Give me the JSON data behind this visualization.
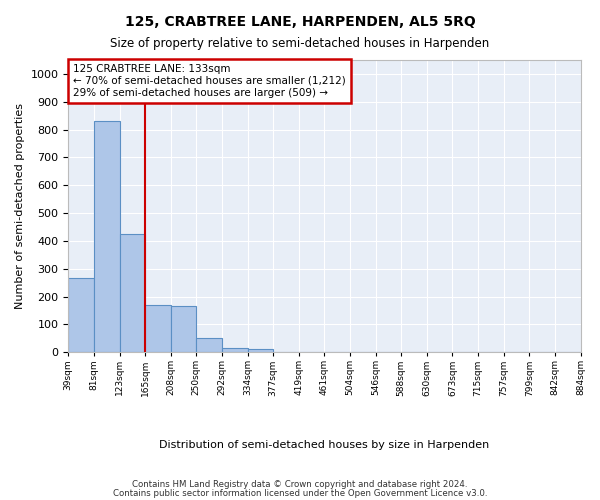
{
  "title": "125, CRABTREE LANE, HARPENDEN, AL5 5RQ",
  "subtitle": "Size of property relative to semi-detached houses in Harpenden",
  "xlabel": "Distribution of semi-detached houses by size in Harpenden",
  "ylabel": "Number of semi-detached properties",
  "footnote1": "Contains HM Land Registry data © Crown copyright and database right 2024.",
  "footnote2": "Contains public sector information licensed under the Open Government Licence v3.0.",
  "bin_labels": [
    "39sqm",
    "81sqm",
    "123sqm",
    "165sqm",
    "208sqm",
    "250sqm",
    "292sqm",
    "334sqm",
    "377sqm",
    "419sqm",
    "461sqm",
    "504sqm",
    "546sqm",
    "588sqm",
    "630sqm",
    "673sqm",
    "715sqm",
    "757sqm",
    "799sqm",
    "842sqm",
    "884sqm"
  ],
  "bar_values": [
    265,
    830,
    425,
    168,
    165,
    52,
    15,
    12,
    0,
    0,
    0,
    0,
    0,
    0,
    0,
    0,
    0,
    0,
    0,
    0
  ],
  "bar_color": "#aec6e8",
  "bar_edge_color": "#5b8fc4",
  "bg_color": "#e8eef7",
  "grid_color": "#ffffff",
  "vline_color": "#cc0000",
  "vline_x": 3,
  "ylim": [
    0,
    1050
  ],
  "yticks": [
    0,
    100,
    200,
    300,
    400,
    500,
    600,
    700,
    800,
    900,
    1000
  ],
  "annotation_line1": "125 CRABTREE LANE: 133sqm",
  "annotation_line2": "← 70% of semi-detached houses are smaller (1,212)",
  "annotation_line3": "29% of semi-detached houses are larger (509) →",
  "annotation_box_edgecolor": "#cc0000"
}
